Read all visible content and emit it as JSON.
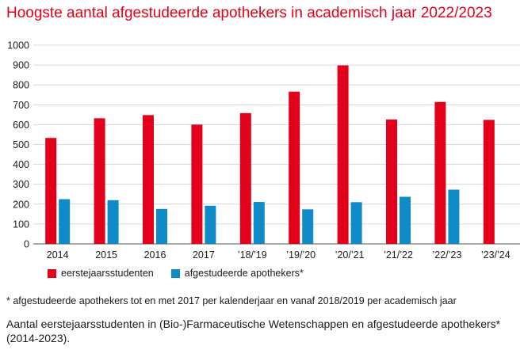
{
  "title": "Hoogste aantal afgestudeerde apothekers in academisch jaar 2022/2023",
  "legend": {
    "series1": "eerstejaarsstudenten",
    "series2": "afgestudeerde apothekers*"
  },
  "footnote": "* afgestudeerde apothekers tot en met 2017 per kalenderjaar en vanaf 2018/2019 per academisch jaar",
  "caption": "Aantal eerstejaarsstudenten in (Bio-)Farmaceutische Wetenschappen en afgestudeerde apothekers* (2014-2023).",
  "chart_data": {
    "type": "bar",
    "categories": [
      "2014",
      "2015",
      "2016",
      "2017",
      "’18/’19",
      "’19/’20",
      "’20/’21",
      "’21/’22",
      "’22/’23",
      "’23/’24"
    ],
    "series": [
      {
        "name": "eerstejaarsstudenten",
        "color": "#e3001b",
        "values": [
          533,
          632,
          648,
          600,
          658,
          766,
          898,
          626,
          714,
          624
        ]
      },
      {
        "name": "afgestudeerde apothekers*",
        "color": "#0f8cc8",
        "values": [
          225,
          220,
          176,
          192,
          211,
          174,
          210,
          237,
          273,
          null
        ]
      }
    ],
    "ylim": [
      0,
      1000
    ],
    "yticks": [
      0,
      100,
      200,
      300,
      400,
      500,
      600,
      700,
      800,
      900,
      1000
    ],
    "grid": true,
    "legend_position": "bottom-left"
  }
}
